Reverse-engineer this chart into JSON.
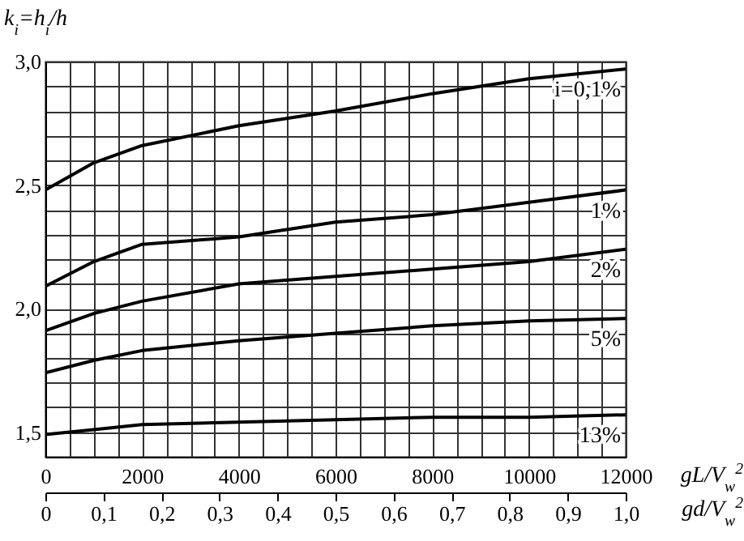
{
  "chart_data": {
    "type": "line",
    "xlabel": "gL/V$_{w}$$^{2}$",
    "ylabel": "k$_{i}$=h$_{i}$/h",
    "x2label": "gd/V$_{w}$$^{2}$",
    "x": [
      0,
      1000,
      2000,
      4000,
      6000,
      8000,
      10000,
      12000
    ],
    "series": [
      {
        "name": "i=0,1%",
        "color": "#000000",
        "values": [
          2.48,
          2.59,
          2.66,
          2.74,
          2.8,
          2.87,
          2.93,
          2.97
        ]
      },
      {
        "name": "1%",
        "color": "#000000",
        "values": [
          2.09,
          2.19,
          2.26,
          2.29,
          2.35,
          2.38,
          2.43,
          2.48
        ]
      },
      {
        "name": "2%",
        "color": "#000000",
        "values": [
          1.91,
          1.98,
          2.03,
          2.1,
          2.13,
          2.16,
          2.19,
          2.24
        ]
      },
      {
        "name": "5%",
        "color": "#000000",
        "values": [
          1.74,
          1.79,
          1.83,
          1.87,
          1.9,
          1.93,
          1.95,
          1.96
        ]
      },
      {
        "name": "13%",
        "color": "#000000",
        "values": [
          1.49,
          1.51,
          1.53,
          1.54,
          1.55,
          1.56,
          1.56,
          1.57
        ]
      }
    ],
    "xlim": [
      0,
      12000
    ],
    "xticks": [
      0,
      {
        "value": 500,
        "label": null
      },
      2000,
      {
        "value": 1000,
        "label": null
      },
      {
        "value": 1500,
        "label": null
      },
      {
        "value": 2500,
        "label": null
      },
      {
        "value": 3000,
        "label": null
      },
      {
        "value": 3500,
        "label": null
      },
      4000,
      {
        "value": 4500,
        "label": null
      },
      {
        "value": 5000,
        "label": null
      },
      {
        "value": 5500,
        "label": null
      },
      6000,
      {
        "value": 6500,
        "label": null
      },
      {
        "value": 7000,
        "label": null
      },
      {
        "value": 7500,
        "label": null
      },
      8000,
      {
        "value": 8500,
        "label": null
      },
      {
        "value": 9000,
        "label": null
      },
      {
        "value": 9500,
        "label": null
      },
      10000,
      {
        "value": 10500,
        "label": null
      },
      {
        "value": 11000,
        "label": null
      },
      {
        "value": 11500,
        "label": null
      },
      12000
    ],
    "ylim": [
      1.4,
      3.0
    ],
    "yticks": [
      {
        "value": 1.4,
        "label": null
      },
      {
        "value": 1.5,
        "label": "1,5"
      },
      {
        "value": 1.6,
        "label": null
      },
      {
        "value": 1.7,
        "label": null
      },
      {
        "value": 1.8,
        "label": null
      },
      {
        "value": 1.9,
        "label": null
      },
      {
        "value": 2.0,
        "label": "2,0"
      },
      {
        "value": 2.1,
        "label": null
      },
      {
        "value": 2.2,
        "label": null
      },
      {
        "value": 2.3,
        "label": null
      },
      {
        "value": 2.4,
        "label": null
      },
      {
        "value": 2.5,
        "label": "2,5"
      },
      {
        "value": 2.6,
        "label": null
      },
      {
        "value": 2.7,
        "label": null
      },
      {
        "value": 2.8,
        "label": null
      },
      {
        "value": 2.9,
        "label": null
      },
      {
        "value": 3.0,
        "label": "3,0"
      }
    ],
    "x2lim": [
      0,
      1.0
    ],
    "x2ticks": [
      0,
      {
        "value": 0.1,
        "label": "0,1"
      },
      {
        "value": 0.2,
        "label": "0,2"
      },
      {
        "value": 0.3,
        "label": "0,3"
      },
      {
        "value": 0.4,
        "label": "0,4"
      },
      {
        "value": 0.5,
        "label": "0,5"
      },
      {
        "value": 0.6,
        "label": "0,6"
      },
      {
        "value": 0.7,
        "label": "0,7"
      },
      {
        "value": 0.8,
        "label": "0,8"
      },
      {
        "value": 0.9,
        "label": "0,9"
      },
      {
        "value": 1.0,
        "label": "1,0"
      }
    ],
    "grid": true,
    "legend": false
  }
}
